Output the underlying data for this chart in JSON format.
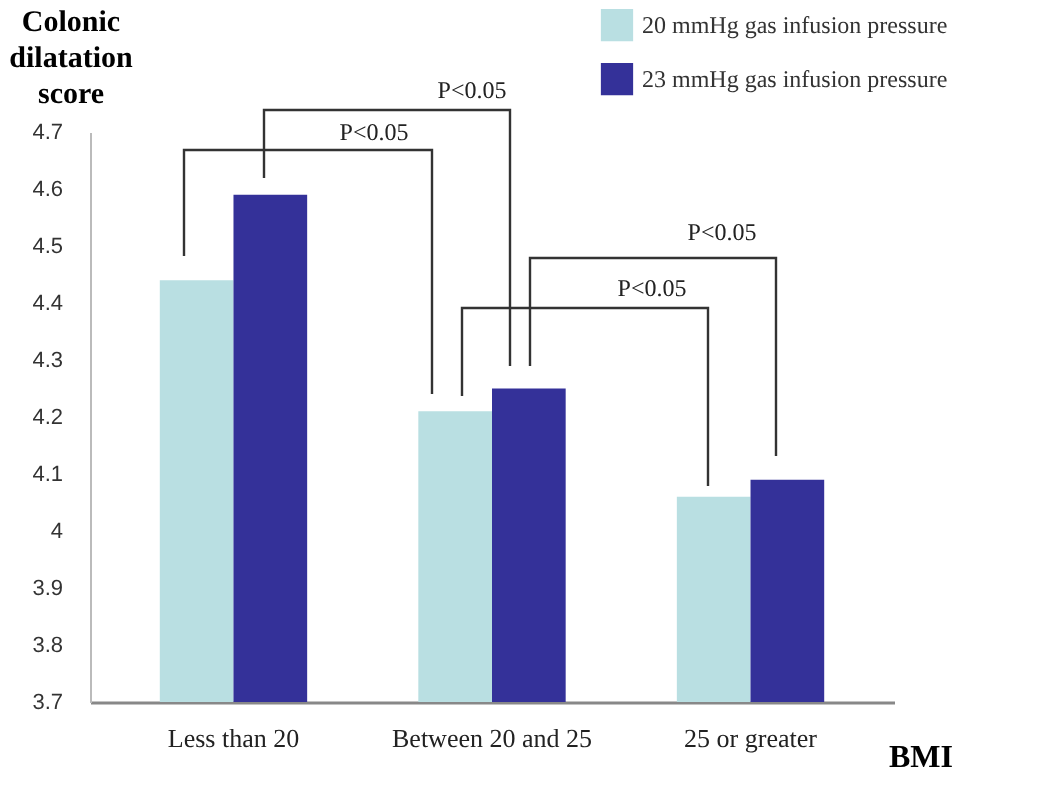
{
  "chart_data": {
    "type": "bar",
    "categories": [
      "Less than 20",
      "Between 20 and 25",
      "25 or greater"
    ],
    "series": [
      {
        "name": "20 mmHg gas infusion pressure",
        "color": "#b9dfe2",
        "values": [
          4.44,
          4.21,
          4.06
        ]
      },
      {
        "name": "23 mmHg gas infusion pressure",
        "color": "#343199",
        "values": [
          4.59,
          4.25,
          4.09
        ]
      }
    ],
    "xlabel": "BMI",
    "ylabel": "Colonic dilatation score",
    "ylim": [
      3.7,
      4.7
    ],
    "yticks": [
      3.7,
      3.8,
      3.9,
      4,
      4.1,
      4.2,
      4.3,
      4.4,
      4.5,
      4.6,
      4.7
    ],
    "grid": false,
    "legend": "top right",
    "annotations": [
      "P<0.05",
      "P<0.05",
      "P<0.05",
      "P<0.05"
    ]
  }
}
